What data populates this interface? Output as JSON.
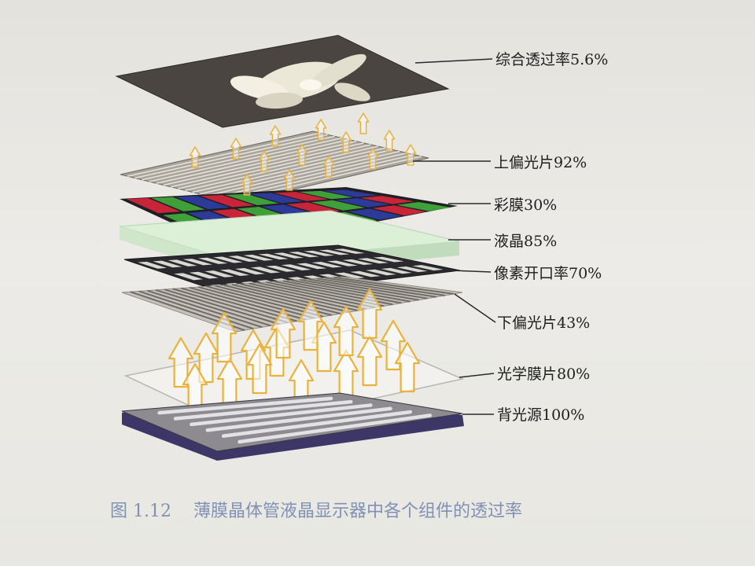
{
  "layers": [
    {
      "id": "image",
      "label": "综合透过率5.6%",
      "percent": 5.6
    },
    {
      "id": "upper-polarizer",
      "label": "上偏光片92%",
      "percent": 92
    },
    {
      "id": "color-filter",
      "label": "彩膜30%",
      "percent": 30
    },
    {
      "id": "liquid-crystal",
      "label": "液晶85%",
      "percent": 85
    },
    {
      "id": "pixel-aperture",
      "label": "像素开口率70%",
      "percent": 70
    },
    {
      "id": "lower-polarizer",
      "label": "下偏光片43%",
      "percent": 43
    },
    {
      "id": "optical-film",
      "label": "光学膜片80%",
      "percent": 80
    },
    {
      "id": "backlight",
      "label": "背光源100%",
      "percent": 100
    }
  ],
  "caption": {
    "number": "图 1.12",
    "text": "薄膜晶体管液晶显示器中各个组件的透过率"
  },
  "colors": {
    "arrow": "#e9b23a",
    "red": "#c9253a",
    "green": "#3fa03a",
    "blue": "#2c3b9a",
    "liquid_crystal": "#cfe8cc",
    "backlight": "#3d3768",
    "caption": "#8191b4"
  }
}
